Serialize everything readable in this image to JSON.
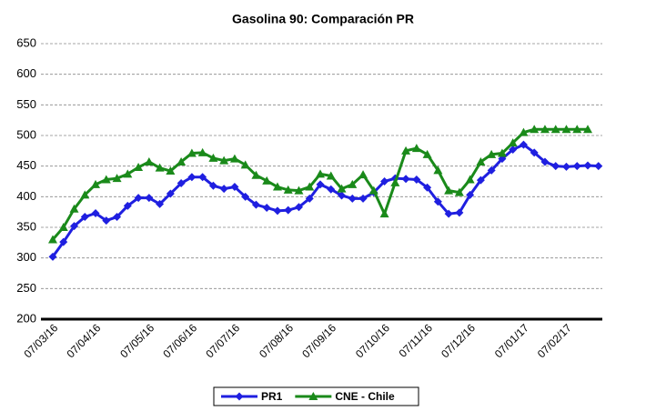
{
  "chart_data": {
    "type": "line",
    "title": "Gasolina 90: Comparación PR",
    "categories": [
      "07/03/16",
      null,
      null,
      null,
      "07/04/16",
      null,
      null,
      null,
      null,
      "07/05/16",
      null,
      null,
      null,
      "07/06/16",
      null,
      null,
      null,
      "07/07/16",
      null,
      null,
      null,
      null,
      "07/08/16",
      null,
      null,
      null,
      "07/09/16",
      null,
      null,
      null,
      null,
      "07/10/16",
      null,
      null,
      null,
      "07/11/16",
      null,
      null,
      null,
      "07/12/16",
      null,
      null,
      null,
      null,
      "07/01/17",
      null,
      null,
      null,
      "07/02/17",
      null,
      null,
      null
    ],
    "series": [
      {
        "name": "PR1",
        "color": "#1f1fe0",
        "marker": "diamond",
        "values": [
          302,
          326,
          352,
          367,
          373,
          361,
          367,
          385,
          398,
          398,
          388,
          405,
          422,
          432,
          432,
          418,
          413,
          416,
          400,
          387,
          382,
          377,
          378,
          383,
          397,
          420,
          412,
          402,
          397,
          397,
          407,
          425,
          430,
          429,
          428,
          415,
          392,
          372,
          374,
          403,
          427,
          443,
          462,
          477,
          485,
          472,
          457,
          450,
          449,
          450,
          451,
          450
        ]
      },
      {
        "name": "CNE - Chile",
        "color": "#1a8a1a",
        "marker": "triangle",
        "values": [
          330,
          350,
          380,
          403,
          420,
          428,
          430,
          437,
          448,
          457,
          447,
          442,
          457,
          471,
          472,
          463,
          459,
          462,
          452,
          435,
          426,
          416,
          411,
          410,
          416,
          437,
          434,
          413,
          420,
          436,
          410,
          372,
          423,
          475,
          479,
          469,
          443,
          410,
          407,
          428,
          457,
          469,
          471,
          488,
          505,
          510,
          510,
          510,
          510,
          510,
          510,
          null
        ]
      }
    ],
    "ylim": [
      200,
      650
    ],
    "yticks": [
      200,
      250,
      300,
      350,
      400,
      450,
      500,
      550,
      600,
      650
    ],
    "grid": true,
    "legend": "bottom"
  }
}
